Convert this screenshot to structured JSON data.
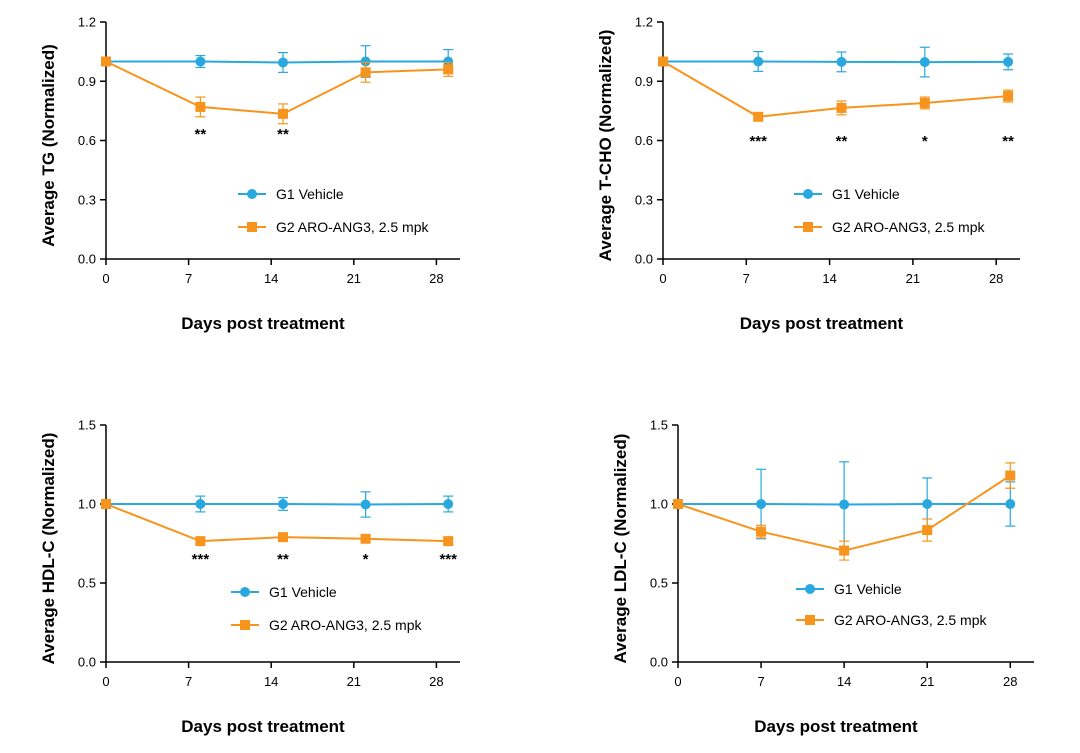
{
  "colors": {
    "vehicle": "#29a8e0",
    "treated": "#f7941d",
    "axis": "#000000"
  },
  "chart_data": [
    {
      "type": "line",
      "xlabel": "Days post treatment",
      "ylabel": "Average TG (Normalized)",
      "xlim": [
        0,
        30
      ],
      "ylim": [
        0,
        1.2
      ],
      "xticks": [
        0,
        7,
        14,
        21,
        28
      ],
      "yticks": [
        "0.0",
        "0.3",
        "0.6",
        "0.9",
        "1.2"
      ],
      "legend_position": "center-right",
      "series": [
        {
          "name": "G1 Vehicle",
          "marker": "circle",
          "x": [
            0,
            8,
            15,
            22,
            29
          ],
          "y": [
            1.0,
            1.0,
            0.995,
            1.0,
            1.0
          ],
          "err": [
            0,
            0.03,
            0.05,
            0.08,
            0.06
          ]
        },
        {
          "name": "G2 ARO-ANG3, 2.5 mpk",
          "marker": "square",
          "x": [
            0,
            8,
            15,
            22,
            29
          ],
          "y": [
            1.0,
            0.77,
            0.735,
            0.945,
            0.96
          ],
          "err": [
            0,
            0.05,
            0.05,
            0.05,
            0.035
          ]
        }
      ],
      "annotations": [
        {
          "x": 8,
          "text": "**"
        },
        {
          "x": 15,
          "text": "**"
        }
      ]
    },
    {
      "type": "line",
      "xlabel": "Days post treatment",
      "ylabel": "Average T-CHO (Normalized)",
      "xlim": [
        0,
        30
      ],
      "ylim": [
        0,
        1.2
      ],
      "xticks": [
        0,
        7,
        14,
        21,
        28
      ],
      "yticks": [
        "0.0",
        "0.3",
        "0.6",
        "0.9",
        "1.2"
      ],
      "legend_position": "center-right",
      "series": [
        {
          "name": "G1 Vehicle",
          "marker": "circle",
          "x": [
            0,
            8,
            15,
            22,
            29
          ],
          "y": [
            1.0,
            1.0,
            0.998,
            0.997,
            0.998
          ],
          "err": [
            0,
            0.05,
            0.05,
            0.075,
            0.04
          ]
        },
        {
          "name": "G2 ARO-ANG3, 2.5 mpk",
          "marker": "square",
          "x": [
            0,
            8,
            15,
            22,
            29
          ],
          "y": [
            1.0,
            0.72,
            0.765,
            0.79,
            0.825
          ],
          "err": [
            0,
            0.015,
            0.035,
            0.03,
            0.03
          ]
        }
      ],
      "annotations": [
        {
          "x": 8,
          "text": "***"
        },
        {
          "x": 15,
          "text": "**"
        },
        {
          "x": 22,
          "text": "*"
        },
        {
          "x": 29,
          "text": "**"
        }
      ]
    },
    {
      "type": "line",
      "xlabel": "Days post treatment",
      "ylabel": "Average HDL-C (Normalized)",
      "xlim": [
        0,
        30
      ],
      "ylim": [
        0,
        1.5
      ],
      "xticks": [
        0,
        7,
        14,
        21,
        28
      ],
      "yticks": [
        "0.0",
        "0.5",
        "1.0",
        "1.5"
      ],
      "legend_position": "lower-right",
      "series": [
        {
          "name": "G1 Vehicle",
          "marker": "circle",
          "x": [
            0,
            8,
            15,
            22,
            29
          ],
          "y": [
            1.0,
            1.0,
            1.0,
            0.997,
            1.0
          ],
          "err": [
            0,
            0.05,
            0.04,
            0.08,
            0.05
          ]
        },
        {
          "name": "G2 ARO-ANG3, 2.5 mpk",
          "marker": "square",
          "x": [
            0,
            8,
            15,
            22,
            29
          ],
          "y": [
            1.0,
            0.765,
            0.79,
            0.78,
            0.765
          ],
          "err": [
            0,
            0.02,
            0.02,
            0.02,
            0.015
          ]
        }
      ],
      "annotations": [
        {
          "x": 8,
          "text": "***"
        },
        {
          "x": 15,
          "text": "**"
        },
        {
          "x": 22,
          "text": "*"
        },
        {
          "x": 29,
          "text": "***"
        }
      ]
    },
    {
      "type": "line",
      "xlabel": "Days post treatment",
      "ylabel": "Average LDL-C (Normalized)",
      "xlim": [
        0,
        30
      ],
      "ylim": [
        0,
        1.5
      ],
      "xticks": [
        0,
        7,
        14,
        21,
        28
      ],
      "yticks": [
        "0.0",
        "0.5",
        "1.0",
        "1.5"
      ],
      "legend_position": "lower-right",
      "series": [
        {
          "name": "G1 Vehicle",
          "marker": "circle",
          "x": [
            0,
            7,
            14,
            21,
            28
          ],
          "y": [
            1.0,
            1.0,
            0.997,
            1.0,
            1.0
          ],
          "err": [
            0,
            0.22,
            0.27,
            0.165,
            0.14
          ]
        },
        {
          "name": "G2 ARO-ANG3, 2.5 mpk",
          "marker": "square",
          "x": [
            0,
            7,
            14,
            21,
            28
          ],
          "y": [
            1.0,
            0.825,
            0.705,
            0.835,
            1.18
          ],
          "err": [
            0,
            0.04,
            0.06,
            0.07,
            0.08
          ]
        }
      ],
      "annotations": []
    }
  ]
}
